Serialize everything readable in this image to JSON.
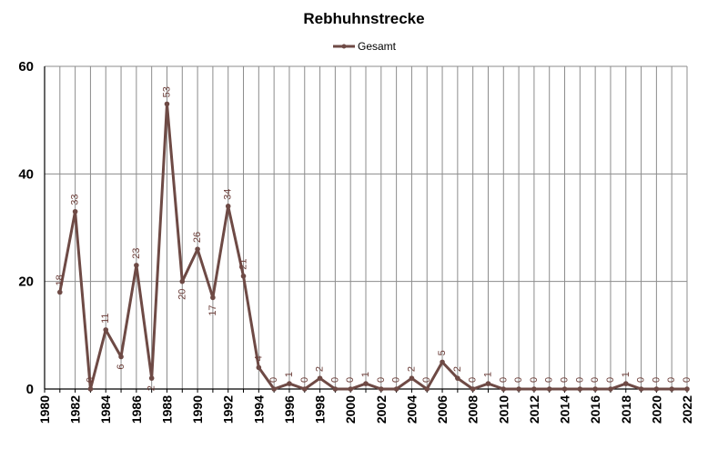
{
  "chart_data": {
    "type": "line",
    "title": "Rebhuhnstrecke",
    "legend": {
      "position": "top-center",
      "entries": [
        "Gesamt"
      ]
    },
    "xlabel": "",
    "ylabel": "",
    "xlim": [
      1980,
      2022
    ],
    "ylim": [
      0,
      60
    ],
    "x_ticks": [
      "1980",
      "1982",
      "1984",
      "1986",
      "1988",
      "1990",
      "1992",
      "1994",
      "1996",
      "1998",
      "2000",
      "2002",
      "2004",
      "2006",
      "2008",
      "2010",
      "2012",
      "2014",
      "2016",
      "2018",
      "2020",
      "2022"
    ],
    "y_ticks": [
      "0",
      "20",
      "40",
      "60"
    ],
    "grid": true,
    "series": [
      {
        "name": "Gesamt",
        "color": "#6e4a45",
        "x": [
          1981,
          1982,
          1983,
          1984,
          1985,
          1986,
          1987,
          1988,
          1989,
          1990,
          1991,
          1992,
          1993,
          1994,
          1995,
          1996,
          1997,
          1998,
          1999,
          2000,
          2001,
          2002,
          2003,
          2004,
          2005,
          2006,
          2007,
          2008,
          2009,
          2010,
          2011,
          2012,
          2013,
          2014,
          2015,
          2016,
          2017,
          2018,
          2019,
          2020,
          2021,
          2022
        ],
        "values": [
          18,
          33,
          0,
          11,
          6,
          23,
          2,
          53,
          20,
          26,
          17,
          34,
          21,
          4,
          0,
          1,
          0,
          2,
          0,
          0,
          1,
          0,
          0,
          2,
          0,
          5,
          2,
          0,
          1,
          0,
          0,
          0,
          0,
          0,
          0,
          0,
          0,
          1,
          0,
          0,
          0,
          0
        ],
        "labels": [
          "18",
          "33",
          "0",
          "11",
          "6",
          "23",
          "2",
          "53",
          "20",
          "26",
          "17",
          "34",
          "21",
          "4",
          "0",
          "1",
          "0",
          "2",
          "0",
          "0",
          "1",
          "0",
          "0",
          "2",
          "0",
          "5",
          "2",
          "0",
          "1",
          "0",
          "0",
          "0",
          "0",
          "0",
          "0",
          "0",
          "0",
          "1",
          "0",
          "0",
          "0",
          "0"
        ]
      }
    ]
  }
}
